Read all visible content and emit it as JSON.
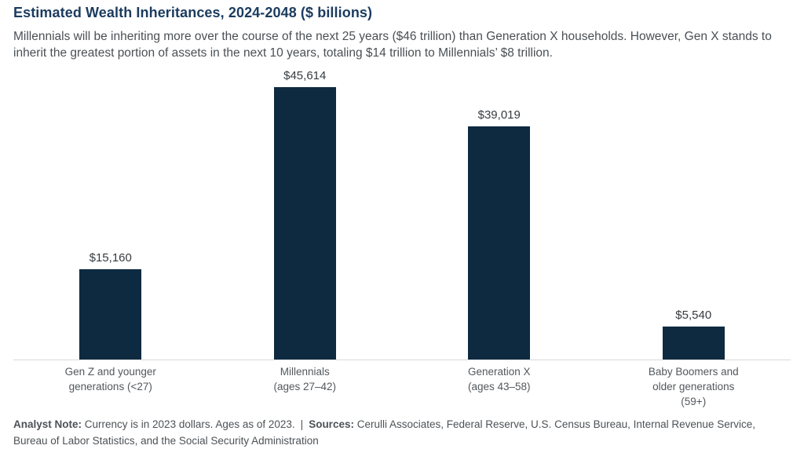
{
  "chart_data": {
    "type": "bar",
    "title": "Estimated Wealth Inheritances, 2024-2048 ($ billions)",
    "subtitle": "Millennials will be inheriting more over the course of the next 25 years ($46 trillion) than Generation X households. However, Gen X stands to inherit the greatest portion of assets in the next 10 years, totaling $14 trillion to Millennials’ $8 trillion.",
    "unit": "$ billions",
    "categories": [
      "Gen Z and younger generations (<27)",
      "Millennials (ages 27–42)",
      "Generation X (ages 43–58)",
      "Baby Boomers and older generations (59+)"
    ],
    "values": [
      15160,
      45614,
      39019,
      5540
    ],
    "bars": [
      {
        "value": 15160,
        "value_label": "$15,160",
        "label_lines": [
          "Gen Z and younger",
          "generations (<27)"
        ]
      },
      {
        "value": 45614,
        "value_label": "$45,614",
        "label_lines": [
          "Millennials",
          "(ages 27–42)"
        ]
      },
      {
        "value": 39019,
        "value_label": "$39,019",
        "label_lines": [
          "Generation X",
          "(ages 43–58)"
        ]
      },
      {
        "value": 5540,
        "value_label": "$5,540",
        "label_lines": [
          "Baby Boomers and",
          "older generations",
          "(59+)"
        ]
      }
    ],
    "ylim": [
      0,
      46000
    ],
    "grid": false,
    "legend": "none",
    "bar_color": "#0d2a40",
    "axis_line_color": "#d9d9d9",
    "title_color": "#1b3b5f"
  },
  "footer": {
    "note_label": "Analyst Note:",
    "note_text": " Currency is in 2023 dollars. Ages as of 2023.",
    "separator": "|",
    "sources_label": "Sources:",
    "sources_text": " Cerulli Associates, Federal Reserve, U.S. Census Bureau, Internal Revenue Service, Bureau of Labor Statistics, and the Social Security Administration"
  }
}
